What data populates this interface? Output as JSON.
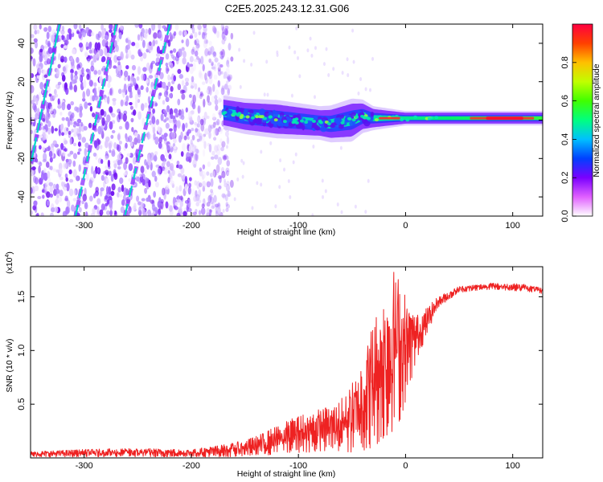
{
  "title": "C2E5.2025.243.12.31.G06",
  "colors": {
    "line": "#ee2222",
    "axis": "#000000",
    "spectrum_low": "#e8d8ff",
    "spectrum_mid": "#7a1fff",
    "band_core": "#00d8c8",
    "band_hot": "#ff2a2a"
  },
  "chart_data": [
    {
      "type": "heatmap",
      "name": "spectrogram",
      "xlabel": "Height of straight line (km)",
      "ylabel": "Frequency (Hz)",
      "xlim": [
        -350,
        128
      ],
      "ylim": [
        -50,
        50
      ],
      "xticks": [
        -300,
        -200,
        -100,
        0,
        100
      ],
      "xtick_labels": [
        "-300",
        "-200",
        "-100",
        "0",
        "100"
      ],
      "yticks": [
        -40,
        -20,
        0,
        20,
        40
      ],
      "ytick_labels": [
        "-40",
        "-20",
        "0",
        "20",
        "40"
      ],
      "noise_region_x": [
        -350,
        -170
      ],
      "signal_band": {
        "x_start": -170,
        "x_end": 128,
        "center_freq": [
          [
            -170,
            4
          ],
          [
            -150,
            2
          ],
          [
            -130,
            1
          ],
          [
            -110,
            0
          ],
          [
            -90,
            -1
          ],
          [
            -70,
            -2
          ],
          [
            -50,
            0
          ],
          [
            -40,
            2
          ],
          [
            -30,
            1
          ],
          [
            -10,
            1
          ],
          [
            10,
            1
          ],
          [
            50,
            1
          ],
          [
            100,
            1
          ],
          [
            128,
            1
          ]
        ],
        "half_width": [
          [
            -170,
            7
          ],
          [
            -120,
            8
          ],
          [
            -80,
            7
          ],
          [
            -50,
            9
          ],
          [
            -30,
            5
          ],
          [
            0,
            3
          ],
          [
            50,
            3
          ],
          [
            128,
            3
          ]
        ]
      },
      "streaks": [
        {
          "x0": -323,
          "y0": 50,
          "x1": -356,
          "y1": -40
        },
        {
          "x0": -270,
          "y0": 50,
          "x1": -308,
          "y1": -50
        },
        {
          "x0": -220,
          "y0": 50,
          "x1": -262,
          "y1": -50
        }
      ],
      "colorbar": {
        "label": "Normalized spectral amplitude",
        "range": [
          0,
          1
        ],
        "ticks": [
          0.0,
          0.2,
          0.4,
          0.6,
          0.8
        ],
        "tick_labels": [
          "0.0",
          "0.2",
          "0.4",
          "0.6",
          "0.8"
        ]
      }
    },
    {
      "type": "line",
      "name": "snr",
      "xlabel": "Height of straight line (km)",
      "ylabel": "SNR (10 * v/v)",
      "y_multiplier": "(x10",
      "y_multiplier_exp": "4",
      "y_multiplier_close": ")",
      "xlim": [
        -350,
        128
      ],
      "ylim": [
        0,
        1.78
      ],
      "xticks": [
        -300,
        -200,
        -100,
        0,
        100
      ],
      "xtick_labels": [
        "-300",
        "-200",
        "-100",
        "0",
        "100"
      ],
      "yticks": [
        0.5,
        1.0,
        1.5
      ],
      "ytick_labels": [
        "0.5",
        "1.0",
        "1.5"
      ],
      "envelope": [
        {
          "x": -350,
          "low": 0.01,
          "high": 0.06
        },
        {
          "x": -300,
          "low": 0.01,
          "high": 0.08
        },
        {
          "x": -250,
          "low": 0.01,
          "high": 0.09
        },
        {
          "x": -200,
          "low": 0.01,
          "high": 0.08
        },
        {
          "x": -160,
          "low": 0.01,
          "high": 0.14
        },
        {
          "x": -140,
          "low": 0.02,
          "high": 0.2
        },
        {
          "x": -120,
          "low": 0.03,
          "high": 0.3
        },
        {
          "x": -100,
          "low": 0.05,
          "high": 0.4
        },
        {
          "x": -80,
          "low": 0.05,
          "high": 0.46
        },
        {
          "x": -60,
          "low": 0.05,
          "high": 0.55
        },
        {
          "x": -45,
          "low": 0.05,
          "high": 0.8
        },
        {
          "x": -30,
          "low": 0.1,
          "high": 1.3
        },
        {
          "x": -20,
          "low": 0.18,
          "high": 1.55
        },
        {
          "x": -12,
          "low": 0.25,
          "high": 1.78
        },
        {
          "x": -5,
          "low": 0.35,
          "high": 1.7
        },
        {
          "x": 2,
          "low": 0.6,
          "high": 1.45
        },
        {
          "x": 10,
          "low": 0.9,
          "high": 1.35
        },
        {
          "x": 20,
          "low": 1.15,
          "high": 1.4
        },
        {
          "x": 30,
          "low": 1.4,
          "high": 1.5
        },
        {
          "x": 50,
          "low": 1.54,
          "high": 1.6
        },
        {
          "x": 80,
          "low": 1.57,
          "high": 1.63
        },
        {
          "x": 110,
          "low": 1.55,
          "high": 1.62
        },
        {
          "x": 128,
          "low": 1.53,
          "high": 1.58
        }
      ]
    }
  ]
}
